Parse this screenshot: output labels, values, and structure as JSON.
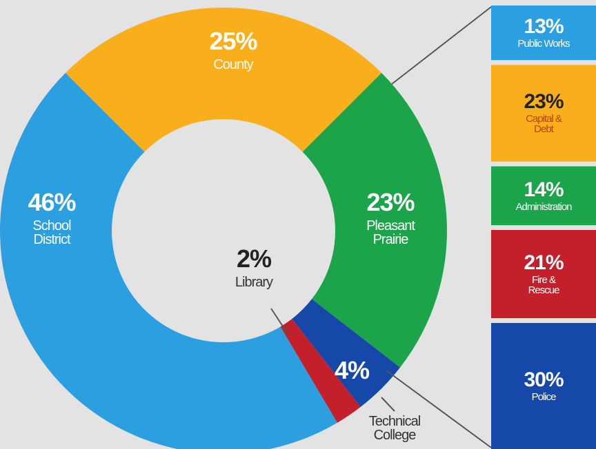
{
  "chart_data": [
    {
      "type": "donut",
      "categories": [
        "County",
        "Pleasant Prairie",
        "Technical College",
        "Library",
        "School District"
      ],
      "values": [
        25,
        23,
        4,
        2,
        46
      ],
      "value_labels": [
        "25%",
        "23%",
        "4%",
        "2%",
        "46%"
      ],
      "colors": [
        "#f9ae1b",
        "#1ba449",
        "#1548a8",
        "#c3202b",
        "#2c9fe0"
      ]
    },
    {
      "type": "stacked-bar",
      "categories": [
        "Public Works",
        "Capital & Debt",
        "Administration",
        "Fire & Rescue",
        "Police"
      ],
      "values": [
        13,
        23,
        14,
        21,
        30
      ],
      "value_labels": [
        "13%",
        "23%",
        "14%",
        "21%",
        "30%"
      ],
      "colors": [
        "#2c9fe0",
        "#f9ae1b",
        "#1ba449",
        "#c3202b",
        "#1548a8"
      ]
    }
  ]
}
